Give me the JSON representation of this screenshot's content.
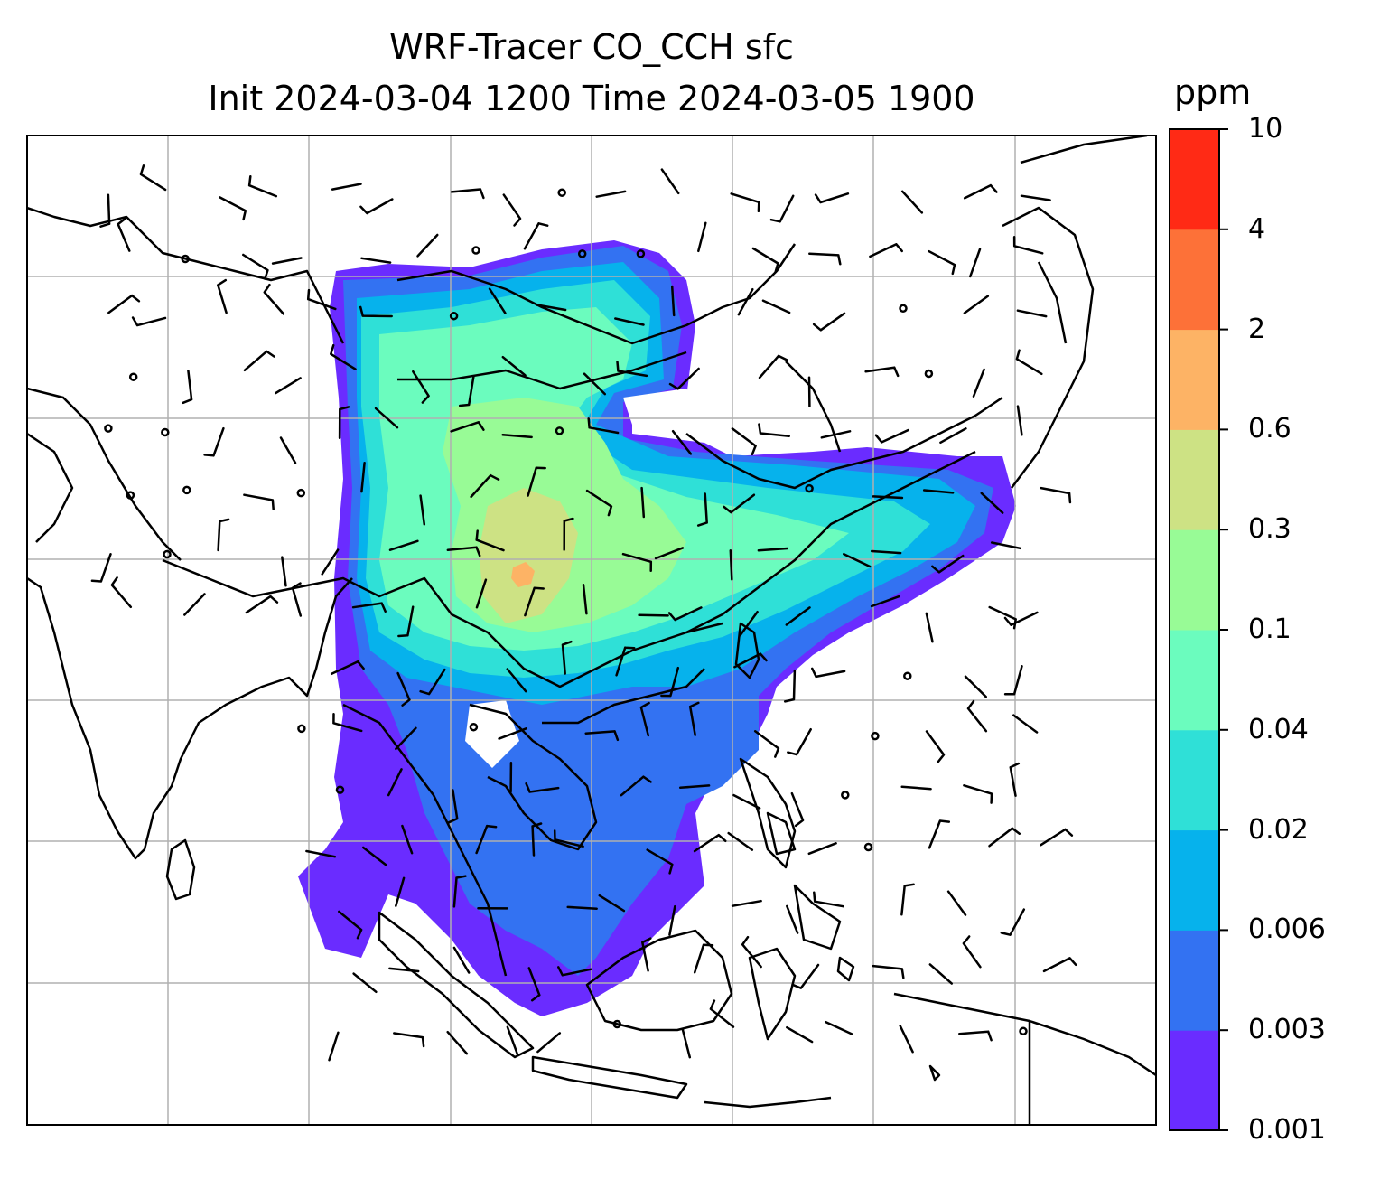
{
  "title": {
    "line1": "WRF-Tracer CO_CCH sfc",
    "line2": "Init 2024-03-04 1200 Time 2024-03-05 1900"
  },
  "colorbar": {
    "label": "ppm",
    "tick_labels": [
      "0.001",
      "0.003",
      "0.006",
      "0.02",
      "0.04",
      "0.1",
      "0.3",
      "0.6",
      "2",
      "4",
      "10"
    ],
    "colors": [
      "#6a2cff",
      "#3372f2",
      "#06b2ec",
      "#2fe0d7",
      "#6bfcbe",
      "#98fb96",
      "#cde284",
      "#fdb365",
      "#fd7138",
      "#ff2a15"
    ]
  },
  "map": {
    "type": "filled-contour-with-wind-barbs",
    "field": "CO_CCH",
    "level": "sfc",
    "units": "ppm",
    "gridlines": true,
    "coastlines": true,
    "wind_barbs": true
  },
  "chart_data": {
    "type": "heatmap",
    "title": "WRF-Tracer CO_CCH sfc",
    "subtitle": "Init 2024-03-04 1200 Time 2024-03-05 1900",
    "colorbar_label": "ppm",
    "levels": [
      0.001,
      0.003,
      0.006,
      0.02,
      0.04,
      0.1,
      0.3,
      0.6,
      2,
      4,
      10
    ],
    "grid": true,
    "legend": "right"
  }
}
